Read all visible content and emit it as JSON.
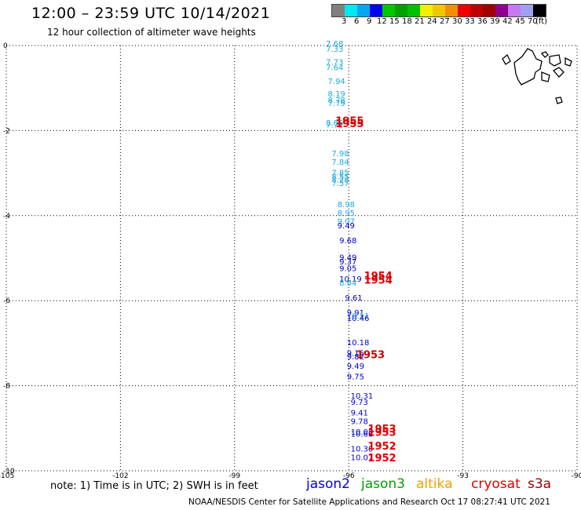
{
  "title": "12:00 – 23:59 UTC 10/14/2021",
  "subtitle": "12 hour collection of altimeter wave heights",
  "colorbar": {
    "colors": [
      "#808080",
      "#00e8f0",
      "#00a8f0",
      "#0000f0",
      "#00c800",
      "#00a000",
      "#00c000",
      "#f0f000",
      "#f0c800",
      "#f09000",
      "#f00000",
      "#c00000",
      "#a00000",
      "#900090",
      "#c878f0",
      "#a0a0f0",
      "#000000"
    ],
    "labels": [
      "3",
      "6",
      "9",
      "12",
      "15",
      "18",
      "21",
      "24",
      "27",
      "30",
      "33",
      "36",
      "39",
      "42",
      "45",
      "70",
      "(ft)"
    ]
  },
  "axes": {
    "x_ticks": [
      "-105",
      "-102",
      "-99",
      "-96",
      "-93",
      "-90"
    ],
    "y_ticks": [
      "0",
      "-2",
      "-4",
      "-6",
      "-8",
      "-10"
    ],
    "lon_range": [
      -105,
      -90
    ],
    "lat_range": [
      -10,
      0
    ]
  },
  "measurements": [
    {
      "lon": -96.6,
      "lat": -0.02,
      "text": "7.68",
      "color": "#1aa8e0"
    },
    {
      "lon": -96.6,
      "lat": -0.15,
      "text": "7.33",
      "color": "#1aa8e0"
    },
    {
      "lon": -96.6,
      "lat": -0.45,
      "text": "7.73",
      "color": "#1aa8e0"
    },
    {
      "lon": -96.6,
      "lat": -0.58,
      "text": "7.64",
      "color": "#1aa8e0"
    },
    {
      "lon": -96.55,
      "lat": -0.9,
      "text": "7.94",
      "color": "#1aa8e0"
    },
    {
      "lon": -96.55,
      "lat": -1.2,
      "text": "8.19",
      "color": "#1aa8e0"
    },
    {
      "lon": -96.55,
      "lat": -1.35,
      "text": "8.78",
      "color": "#1aa8e0"
    },
    {
      "lon": -96.55,
      "lat": -1.42,
      "text": "7.79",
      "color": "#1aa8e0"
    },
    {
      "lon": -96.6,
      "lat": -1.88,
      "text": "8.06",
      "color": "#1aa8e0"
    },
    {
      "lon": -96.6,
      "lat": -1.93,
      "text": "7.72",
      "color": "#1aa8e0"
    },
    {
      "lon": -96.45,
      "lat": -2.6,
      "text": "7.98",
      "color": "#1aa8e0"
    },
    {
      "lon": -96.45,
      "lat": -2.8,
      "text": "7.84",
      "color": "#1aa8e0"
    },
    {
      "lon": -96.45,
      "lat": -3.05,
      "text": "7.85",
      "color": "#1aa8e0"
    },
    {
      "lon": -96.45,
      "lat": -3.15,
      "text": "8.55",
      "color": "#1aa8e0"
    },
    {
      "lon": -96.45,
      "lat": -3.22,
      "text": "8.28",
      "color": "#1aa8e0"
    },
    {
      "lon": -96.45,
      "lat": -3.3,
      "text": "7.57",
      "color": "#1aa8e0"
    },
    {
      "lon": -96.3,
      "lat": -3.8,
      "text": "8.98",
      "color": "#1aa8e0"
    },
    {
      "lon": -96.3,
      "lat": -4.0,
      "text": "8.95",
      "color": "#1aa8e0"
    },
    {
      "lon": -96.3,
      "lat": -4.2,
      "text": "9.07",
      "color": "#1aa8e0"
    },
    {
      "lon": -96.3,
      "lat": -4.3,
      "text": "9.49",
      "color": "#0000c8"
    },
    {
      "lon": -96.25,
      "lat": -4.65,
      "text": "9.68",
      "color": "#0000c8"
    },
    {
      "lon": -96.25,
      "lat": -5.05,
      "text": "9.49",
      "color": "#0000c8"
    },
    {
      "lon": -96.25,
      "lat": -5.15,
      "text": "9.37",
      "color": "#0000c8"
    },
    {
      "lon": -96.25,
      "lat": -5.3,
      "text": "9.05",
      "color": "#0000c8"
    },
    {
      "lon": -96.25,
      "lat": -5.55,
      "text": "10.19",
      "color": "#0000c8"
    },
    {
      "lon": -96.25,
      "lat": -5.65,
      "text": "8.64",
      "color": "#1aa8e0"
    },
    {
      "lon": -96.1,
      "lat": -6.0,
      "text": "9.61",
      "color": "#0000c8"
    },
    {
      "lon": -96.05,
      "lat": -6.35,
      "text": "9.91",
      "color": "#0000c8"
    },
    {
      "lon": -96.05,
      "lat": -6.42,
      "text": "10.11",
      "color": "#1aa8e0"
    },
    {
      "lon": -96.05,
      "lat": -6.48,
      "text": "10.46",
      "color": "#0000c8"
    },
    {
      "lon": -96.05,
      "lat": -7.05,
      "text": "10.18",
      "color": "#0000c8"
    },
    {
      "lon": -96.05,
      "lat": -7.3,
      "text": "9.15",
      "color": "#0000c8"
    },
    {
      "lon": -96.05,
      "lat": -7.38,
      "text": "9.82",
      "color": "#0000c8"
    },
    {
      "lon": -96.05,
      "lat": -7.6,
      "text": "9.49",
      "color": "#0000c8"
    },
    {
      "lon": -96.05,
      "lat": -7.85,
      "text": "9.75",
      "color": "#0000c8"
    },
    {
      "lon": -95.95,
      "lat": -8.3,
      "text": "10.31",
      "color": "#0000c8"
    },
    {
      "lon": -95.95,
      "lat": -8.45,
      "text": "9.73",
      "color": "#0000c8"
    },
    {
      "lon": -95.95,
      "lat": -8.7,
      "text": "9.41",
      "color": "#0000c8"
    },
    {
      "lon": -95.95,
      "lat": -8.9,
      "text": "9.78",
      "color": "#0000c8"
    },
    {
      "lon": -95.95,
      "lat": -9.15,
      "text": "10.08",
      "color": "#0000c8"
    },
    {
      "lon": -95.95,
      "lat": -9.2,
      "text": "10.68",
      "color": "#0000c8"
    },
    {
      "lon": -95.95,
      "lat": -9.55,
      "text": "10.30",
      "color": "#0000c8"
    },
    {
      "lon": -95.95,
      "lat": -9.75,
      "text": "10.07",
      "color": "#0000c8"
    }
  ],
  "pass_labels": [
    {
      "lon": -96.35,
      "lat": -1.85,
      "text": "1955",
      "color": "#e00000"
    },
    {
      "lon": -96.35,
      "lat": -1.92,
      "text": "1955",
      "color": "#e00000"
    },
    {
      "lon": -95.6,
      "lat": -5.5,
      "text": "1954",
      "color": "#e00000"
    },
    {
      "lon": -95.6,
      "lat": -5.6,
      "text": "1954",
      "color": "#e00000"
    },
    {
      "lon": -95.8,
      "lat": -7.35,
      "text": "1953",
      "color": "#c80000"
    },
    {
      "lon": -95.5,
      "lat": -9.1,
      "text": "1953",
      "color": "#e00000"
    },
    {
      "lon": -95.5,
      "lat": -9.18,
      "text": "1953",
      "color": "#e00000"
    },
    {
      "lon": -95.5,
      "lat": -9.5,
      "text": "1952",
      "color": "#e00000"
    },
    {
      "lon": -95.5,
      "lat": -9.78,
      "text": "1952",
      "color": "#e00000"
    }
  ],
  "note": "note: 1) Time is in UTC; 2) SWH is in feet",
  "legend": [
    {
      "label": "jason2",
      "color": "#0000e0"
    },
    {
      "label": "jason3",
      "color": "#00a000"
    },
    {
      "label": "altika",
      "color": "#f0a000"
    },
    {
      "label": "cryosat",
      "color": "#e00000"
    },
    {
      "label": "s3a",
      "color": "#a00000"
    }
  ],
  "credit": "NOAA/NESDIS Center for Satellite Applications and Research    Oct 17 08:27:41 UTC 2021"
}
